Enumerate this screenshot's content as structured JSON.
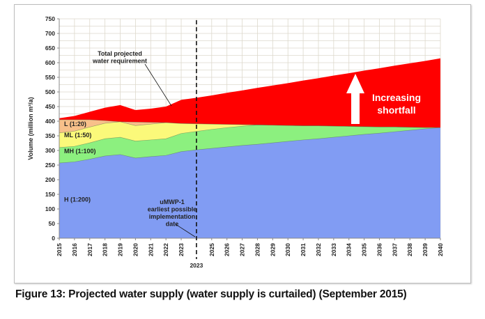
{
  "caption": "Figure 13: Projected water supply (water supply is curtailed) (September 2015)",
  "chart_data": {
    "type": "area",
    "stacked": true,
    "title": "",
    "xlabel": "",
    "ylabel": "Volume (million m³/a)",
    "ylim": [
      0,
      750
    ],
    "yticks": [
      0,
      50,
      100,
      150,
      200,
      250,
      300,
      350,
      400,
      450,
      500,
      550,
      600,
      650,
      700,
      750
    ],
    "xlim": [
      2015,
      2040
    ],
    "xtick_labels": [
      "2015",
      "2016",
      "2017",
      "2018",
      "2019",
      "2020",
      "2021",
      "2022",
      "2023",
      "",
      "2025",
      "2026",
      "2027",
      "2028",
      "2029",
      "2030",
      "2031",
      "2032",
      "2033",
      "2034",
      "2035",
      "2036",
      "2037",
      "2038",
      "2039",
      "2040"
    ],
    "grid": true,
    "x": [
      2015,
      2016,
      2017,
      2018,
      2019,
      2020,
      2021,
      2022,
      2023,
      2024,
      2025,
      2026,
      2027,
      2028,
      2029,
      2030,
      2031,
      2032,
      2033,
      2034,
      2035,
      2036,
      2037,
      2038,
      2039,
      2040
    ],
    "series": [
      {
        "name": "H (1:200)",
        "color": "#819cf3",
        "top": [
          257,
          261,
          270,
          281,
          286,
          274,
          279,
          283,
          296,
          302,
          307,
          312,
          317,
          321,
          326,
          331,
          336,
          340,
          345,
          350,
          355,
          359,
          364,
          369,
          374,
          378
        ]
      },
      {
        "name": "MH (1:100)",
        "color": "#8cf07f",
        "top": [
          310,
          314,
          326,
          340,
          345,
          332,
          336,
          340,
          358,
          365,
          372,
          378,
          383,
          387,
          386,
          385,
          384,
          384,
          383,
          382,
          381,
          380,
          380,
          379,
          378,
          378
        ]
      },
      {
        "name": "ML (1:50)",
        "color": "#fbf97a",
        "top": [
          360,
          366,
          380,
          393,
          398,
          385,
          390,
          395,
          392,
          391,
          390,
          389,
          388,
          387,
          386,
          385,
          384,
          384,
          383,
          382,
          381,
          380,
          380,
          379,
          378,
          378
        ]
      },
      {
        "name": "L (1:20)",
        "color": "#f8c08a",
        "top": [
          405,
          405,
          405,
          402,
          398,
          397,
          396,
          395,
          392,
          391,
          390,
          389,
          388,
          387,
          386,
          385,
          384,
          384,
          383,
          382,
          381,
          380,
          380,
          379,
          378,
          378
        ]
      },
      {
        "name": "Total projected water requirement",
        "color": "#ff0000",
        "top": [
          410,
          418,
          432,
          446,
          455,
          438,
          443,
          450,
          473,
          480,
          488,
          497,
          505,
          514,
          522,
          530,
          539,
          547,
          556,
          564,
          573,
          581,
          590,
          598,
          606,
          615
        ]
      }
    ],
    "annotations": {
      "total_label": "Total projected water requirement",
      "shortfall_label": "Increasing shortfall",
      "implementation_label": "uMWP-1 earliest possible implementation date",
      "implementation_line_year": 2024,
      "implementation_year_label": "2023"
    }
  }
}
